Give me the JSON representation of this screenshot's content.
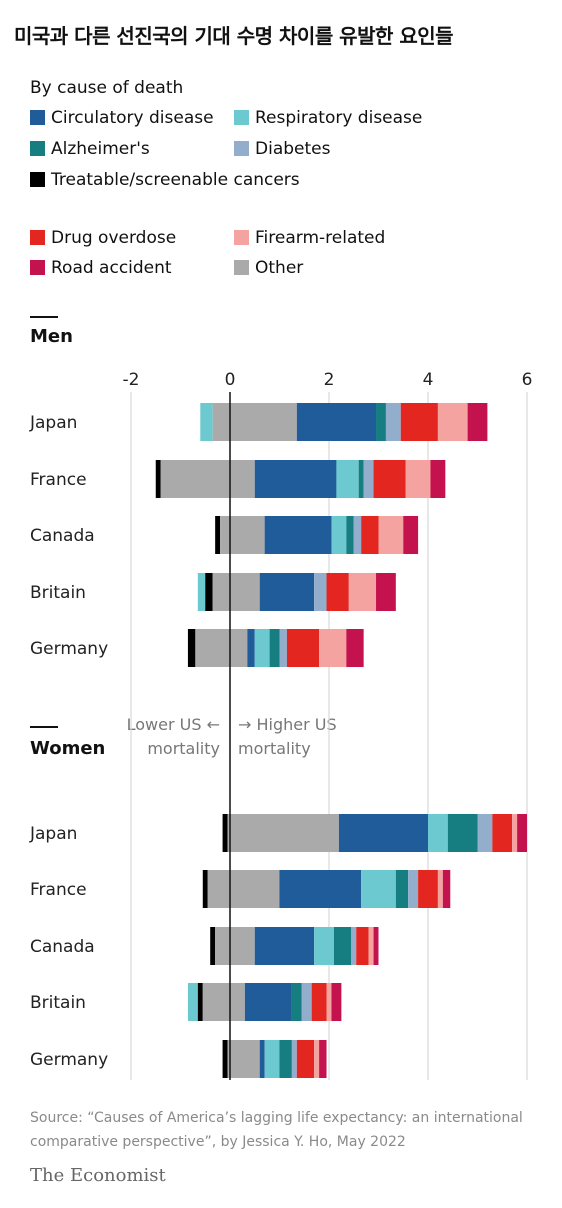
{
  "title": "미국과 다른 선진국의 기대 수명 차이를 유발한 요인들",
  "subtitle": "By cause of death",
  "legend": [
    {
      "label": "Circulatory disease",
      "color": "#1f5c99"
    },
    {
      "label": "Respiratory disease",
      "color": "#6cc9cf"
    },
    {
      "label": "Alzheimer's",
      "color": "#167d80"
    },
    {
      "label": "Diabetes",
      "color": "#93aecd"
    },
    {
      "label": "Treatable/screenable cancers",
      "color": "#000000"
    },
    {
      "label": "Drug overdose",
      "color": "#e3261f"
    },
    {
      "label": "Firearm-related",
      "color": "#f5a3a0"
    },
    {
      "label": "Road accident",
      "color": "#c4124f"
    },
    {
      "label": "Other",
      "color": "#aaaaaa"
    }
  ],
  "direction": {
    "left_line1": "Lower US ←",
    "left_line2": "mortality",
    "right_line1": "→ Higher US",
    "right_line2": "mortality"
  },
  "source": "Source: “Causes of America’s lagging life expectancy: an international comparative perspective”, by Jessica Y. Ho, May 2022",
  "brand": "The Economist",
  "chart_data": {
    "type": "bar",
    "orientation": "horizontal-stacked-diverging",
    "xlim": [
      -2,
      6
    ],
    "xticks": [
      "-2",
      "0",
      "2",
      "4",
      "6"
    ],
    "categories": [
      "Japan",
      "France",
      "Canada",
      "Britain",
      "Germany"
    ],
    "panels": [
      {
        "name": "Men",
        "bars": [
          {
            "category": "Japan",
            "segments": [
              {
                "cause": "Respiratory disease",
                "from": -0.6,
                "to": -0.35
              },
              {
                "cause": "Other",
                "from": -0.35,
                "to": 1.35
              },
              {
                "cause": "Circulatory disease",
                "from": 1.35,
                "to": 2.95
              },
              {
                "cause": "Alzheimer's",
                "from": 2.95,
                "to": 3.15
              },
              {
                "cause": "Diabetes",
                "from": 3.15,
                "to": 3.45
              },
              {
                "cause": "Drug overdose",
                "from": 3.45,
                "to": 4.2
              },
              {
                "cause": "Firearm-related",
                "from": 4.2,
                "to": 4.8
              },
              {
                "cause": "Road accident",
                "from": 4.8,
                "to": 5.2
              }
            ]
          },
          {
            "category": "France",
            "segments": [
              {
                "cause": "Treatable/screenable cancers",
                "from": -1.5,
                "to": -1.4
              },
              {
                "cause": "Other",
                "from": -1.4,
                "to": 0.5
              },
              {
                "cause": "Circulatory disease",
                "from": 0.5,
                "to": 2.15
              },
              {
                "cause": "Respiratory disease",
                "from": 2.15,
                "to": 2.6
              },
              {
                "cause": "Alzheimer's",
                "from": 2.6,
                "to": 2.7
              },
              {
                "cause": "Diabetes",
                "from": 2.7,
                "to": 2.9
              },
              {
                "cause": "Drug overdose",
                "from": 2.9,
                "to": 3.55
              },
              {
                "cause": "Firearm-related",
                "from": 3.55,
                "to": 4.05
              },
              {
                "cause": "Road accident",
                "from": 4.05,
                "to": 4.35
              }
            ]
          },
          {
            "category": "Canada",
            "segments": [
              {
                "cause": "Treatable/screenable cancers",
                "from": -0.3,
                "to": -0.2
              },
              {
                "cause": "Other",
                "from": -0.2,
                "to": 0.7
              },
              {
                "cause": "Circulatory disease",
                "from": 0.7,
                "to": 2.05
              },
              {
                "cause": "Respiratory disease",
                "from": 2.05,
                "to": 2.35
              },
              {
                "cause": "Alzheimer's",
                "from": 2.35,
                "to": 2.5
              },
              {
                "cause": "Diabetes",
                "from": 2.5,
                "to": 2.65
              },
              {
                "cause": "Drug overdose",
                "from": 2.65,
                "to": 3.0
              },
              {
                "cause": "Firearm-related",
                "from": 3.0,
                "to": 3.5
              },
              {
                "cause": "Road accident",
                "from": 3.5,
                "to": 3.8
              }
            ]
          },
          {
            "category": "Britain",
            "segments": [
              {
                "cause": "Respiratory disease",
                "from": -0.65,
                "to": -0.5
              },
              {
                "cause": "Treatable/screenable cancers",
                "from": -0.5,
                "to": -0.35
              },
              {
                "cause": "Other",
                "from": -0.35,
                "to": 0.6
              },
              {
                "cause": "Circulatory disease",
                "from": 0.6,
                "to": 1.7
              },
              {
                "cause": "Diabetes",
                "from": 1.7,
                "to": 1.95
              },
              {
                "cause": "Drug overdose",
                "from": 1.95,
                "to": 2.4
              },
              {
                "cause": "Firearm-related",
                "from": 2.4,
                "to": 2.95
              },
              {
                "cause": "Road accident",
                "from": 2.95,
                "to": 3.35
              }
            ]
          },
          {
            "category": "Germany",
            "segments": [
              {
                "cause": "Treatable/screenable cancers",
                "from": -0.85,
                "to": -0.7
              },
              {
                "cause": "Other",
                "from": -0.7,
                "to": 0.35
              },
              {
                "cause": "Circulatory disease",
                "from": 0.35,
                "to": 0.5
              },
              {
                "cause": "Respiratory disease",
                "from": 0.5,
                "to": 0.8
              },
              {
                "cause": "Alzheimer's",
                "from": 0.8,
                "to": 1.0
              },
              {
                "cause": "Diabetes",
                "from": 1.0,
                "to": 1.15
              },
              {
                "cause": "Drug overdose",
                "from": 1.15,
                "to": 1.8
              },
              {
                "cause": "Firearm-related",
                "from": 1.8,
                "to": 2.35
              },
              {
                "cause": "Road accident",
                "from": 2.35,
                "to": 2.7
              }
            ]
          }
        ]
      },
      {
        "name": "Women",
        "bars": [
          {
            "category": "Japan",
            "segments": [
              {
                "cause": "Treatable/screenable cancers",
                "from": -0.15,
                "to": -0.05
              },
              {
                "cause": "Other",
                "from": -0.05,
                "to": 2.2
              },
              {
                "cause": "Circulatory disease",
                "from": 2.2,
                "to": 4.0
              },
              {
                "cause": "Respiratory disease",
                "from": 4.0,
                "to": 4.4
              },
              {
                "cause": "Alzheimer's",
                "from": 4.4,
                "to": 5.0
              },
              {
                "cause": "Diabetes",
                "from": 5.0,
                "to": 5.3
              },
              {
                "cause": "Drug overdose",
                "from": 5.3,
                "to": 5.7
              },
              {
                "cause": "Firearm-related",
                "from": 5.7,
                "to": 5.8
              },
              {
                "cause": "Road accident",
                "from": 5.8,
                "to": 6.0
              }
            ]
          },
          {
            "category": "France",
            "segments": [
              {
                "cause": "Treatable/screenable cancers",
                "from": -0.55,
                "to": -0.45
              },
              {
                "cause": "Other",
                "from": -0.45,
                "to": 1.0
              },
              {
                "cause": "Circulatory disease",
                "from": 1.0,
                "to": 2.65
              },
              {
                "cause": "Respiratory disease",
                "from": 2.65,
                "to": 3.35
              },
              {
                "cause": "Alzheimer's",
                "from": 3.35,
                "to": 3.6
              },
              {
                "cause": "Diabetes",
                "from": 3.6,
                "to": 3.8
              },
              {
                "cause": "Drug overdose",
                "from": 3.8,
                "to": 4.2
              },
              {
                "cause": "Firearm-related",
                "from": 4.2,
                "to": 4.3
              },
              {
                "cause": "Road accident",
                "from": 4.3,
                "to": 4.45
              }
            ]
          },
          {
            "category": "Canada",
            "segments": [
              {
                "cause": "Treatable/screenable cancers",
                "from": -0.4,
                "to": -0.3
              },
              {
                "cause": "Other",
                "from": -0.3,
                "to": 0.5
              },
              {
                "cause": "Circulatory disease",
                "from": 0.5,
                "to": 1.7
              },
              {
                "cause": "Respiratory disease",
                "from": 1.7,
                "to": 2.1
              },
              {
                "cause": "Alzheimer's",
                "from": 2.1,
                "to": 2.45
              },
              {
                "cause": "Diabetes",
                "from": 2.45,
                "to": 2.55
              },
              {
                "cause": "Drug overdose",
                "from": 2.55,
                "to": 2.8
              },
              {
                "cause": "Firearm-related",
                "from": 2.8,
                "to": 2.9
              },
              {
                "cause": "Road accident",
                "from": 2.9,
                "to": 3.0
              }
            ]
          },
          {
            "category": "Britain",
            "segments": [
              {
                "cause": "Respiratory disease",
                "from": -0.85,
                "to": -0.65
              },
              {
                "cause": "Treatable/screenable cancers",
                "from": -0.65,
                "to": -0.55
              },
              {
                "cause": "Other",
                "from": -0.55,
                "to": 0.3
              },
              {
                "cause": "Circulatory disease",
                "from": 0.3,
                "to": 1.25
              },
              {
                "cause": "Alzheimer's",
                "from": 1.25,
                "to": 1.45
              },
              {
                "cause": "Diabetes",
                "from": 1.45,
                "to": 1.65
              },
              {
                "cause": "Drug overdose",
                "from": 1.65,
                "to": 1.95
              },
              {
                "cause": "Firearm-related",
                "from": 1.95,
                "to": 2.05
              },
              {
                "cause": "Road accident",
                "from": 2.05,
                "to": 2.25
              }
            ]
          },
          {
            "category": "Germany",
            "segments": [
              {
                "cause": "Treatable/screenable cancers",
                "from": -0.15,
                "to": -0.05
              },
              {
                "cause": "Other",
                "from": -0.05,
                "to": 0.6
              },
              {
                "cause": "Circulatory disease",
                "from": 0.6,
                "to": 0.7
              },
              {
                "cause": "Respiratory disease",
                "from": 0.7,
                "to": 1.0
              },
              {
                "cause": "Alzheimer's",
                "from": 1.0,
                "to": 1.25
              },
              {
                "cause": "Diabetes",
                "from": 1.25,
                "to": 1.35
              },
              {
                "cause": "Drug overdose",
                "from": 1.35,
                "to": 1.7
              },
              {
                "cause": "Firearm-related",
                "from": 1.7,
                "to": 1.8
              },
              {
                "cause": "Road accident",
                "from": 1.8,
                "to": 1.95
              }
            ]
          }
        ]
      }
    ]
  }
}
